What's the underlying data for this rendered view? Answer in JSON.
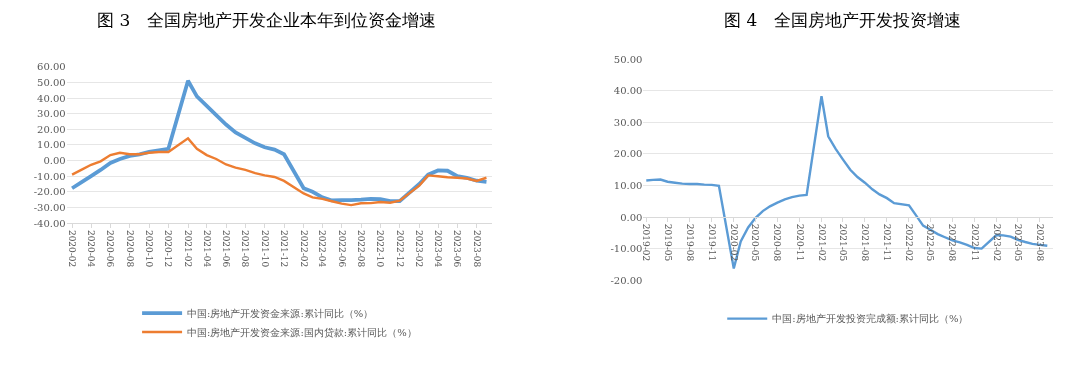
{
  "chart_data": [
    {
      "type": "line",
      "title": "图 3　全国房地产开发企业本年到位资金增速",
      "x": [
        "2020-02",
        "2020-03",
        "2020-04",
        "2020-05",
        "2020-06",
        "2020-07",
        "2020-08",
        "2020-09",
        "2020-10",
        "2020-11",
        "2020-12",
        "2021-02",
        "2021-03",
        "2021-04",
        "2021-05",
        "2021-06",
        "2021-07",
        "2021-08",
        "2021-09",
        "2021-10",
        "2021-11",
        "2021-12",
        "2022-02",
        "2022-03",
        "2022-04",
        "2022-05",
        "2022-06",
        "2022-07",
        "2022-08",
        "2022-09",
        "2022-10",
        "2022-11",
        "2022-12",
        "2023-02",
        "2023-03",
        "2023-04",
        "2023-05",
        "2023-06",
        "2023-07",
        "2023-08",
        "2023-09"
      ],
      "series": [
        {
          "name": "中国:房地产开发资金来源:累计同比（%）",
          "color": "#5b9bd5",
          "values": [
            -17.7,
            -14,
            -10,
            -6,
            -1.5,
            1,
            3,
            4,
            5.5,
            6.5,
            7.5,
            51,
            41,
            35,
            29,
            23,
            18,
            14.5,
            11,
            8.5,
            7,
            4,
            -17.7,
            -20,
            -23.5,
            -25.5,
            -25.3,
            -25.3,
            -25,
            -24.5,
            -24.6,
            -26,
            -25.9,
            -15,
            -9,
            -6.3,
            -6.5,
            -10,
            -11,
            -12.9,
            -13.6
          ]
        },
        {
          "name": "中国:房地产开发资金来源:国内贷款:累计同比（%）",
          "color": "#ed7d31",
          "values": [
            -9,
            -6,
            -2.7,
            -0.5,
            3.5,
            5,
            4,
            4,
            5,
            5.5,
            5.5,
            14.2,
            7.5,
            3.5,
            1,
            -2.5,
            -4.5,
            -6,
            -8,
            -9.5,
            -10.5,
            -13,
            -21,
            -23.5,
            -24.5,
            -26,
            -27.5,
            -28.5,
            -27.3,
            -27.2,
            -26.5,
            -27,
            -25.6,
            -16,
            -9.5,
            -10,
            -10.7,
            -11,
            -11.5,
            -13,
            -11
          ]
        }
      ],
      "xlim": [
        "2020-01-15",
        "2023-09-20"
      ],
      "xticks": [
        {
          "value": "2020-02",
          "label": "2020-02"
        },
        {
          "value": "2020-04",
          "label": "2020-04"
        },
        {
          "value": "2020-06",
          "label": "2020-06"
        },
        {
          "value": "2020-08",
          "label": "2020-08"
        },
        {
          "value": "2020-10",
          "label": "2020-10"
        },
        {
          "value": "2020-12",
          "label": "2020-12"
        },
        {
          "value": "2021-02",
          "label": "2021-02"
        },
        {
          "value": "2021-04",
          "label": "2021-04"
        },
        {
          "value": "2021-06",
          "label": "2021-06"
        },
        {
          "value": "2021-08",
          "label": "2021-08"
        },
        {
          "value": "2021-10",
          "label": "2021-10"
        },
        {
          "value": "2021-12",
          "label": "2021-12"
        },
        {
          "value": "2022-02",
          "label": "2022-02"
        },
        {
          "value": "2022-04",
          "label": "2022-04"
        },
        {
          "value": "2022-06",
          "label": "2022-06"
        },
        {
          "value": "2022-08",
          "label": "2022-08"
        },
        {
          "value": "2022-10",
          "label": "2022-10"
        },
        {
          "value": "2022-12",
          "label": "2022-12"
        },
        {
          "value": "2023-02",
          "label": "2023-02"
        },
        {
          "value": "2023-04",
          "label": "2023-04"
        },
        {
          "value": "2023-06",
          "label": "2023-06"
        },
        {
          "value": "2023-08",
          "label": "2023-08"
        }
      ],
      "ylim": [
        -40,
        60
      ],
      "yticks": [
        {
          "value": -40,
          "label": "-40.00"
        },
        {
          "value": -30,
          "label": "-30.00"
        },
        {
          "value": -20,
          "label": "-20.00"
        },
        {
          "value": -10,
          "label": "-10.00"
        },
        {
          "value": 0,
          "label": "0.00"
        },
        {
          "value": 10,
          "label": "10.00"
        },
        {
          "value": 20,
          "label": "20.00"
        },
        {
          "value": 30,
          "label": "30.00"
        },
        {
          "value": 40,
          "label": "40.00"
        },
        {
          "value": 50,
          "label": "50.00"
        },
        {
          "value": 60,
          "label": "60.00"
        }
      ],
      "grid": "y",
      "legend": "bottom"
    },
    {
      "type": "line",
      "title": "图 4　全国房地产开发投资增速",
      "x": [
        "2019-02",
        "2019-03",
        "2019-04",
        "2019-05",
        "2019-06",
        "2019-07",
        "2019-08",
        "2019-09",
        "2019-10",
        "2019-11",
        "2019-12",
        "2020-02",
        "2020-03",
        "2020-04",
        "2020-05",
        "2020-06",
        "2020-07",
        "2020-08",
        "2020-09",
        "2020-10",
        "2020-11",
        "2020-12",
        "2021-02",
        "2021-03",
        "2021-04",
        "2021-05",
        "2021-06",
        "2021-07",
        "2021-08",
        "2021-09",
        "2021-10",
        "2021-11",
        "2021-12",
        "2022-02",
        "2022-03",
        "2022-04",
        "2022-05",
        "2022-06",
        "2022-07",
        "2022-08",
        "2022-09",
        "2022-10",
        "2022-11",
        "2022-12",
        "2023-02",
        "2023-03",
        "2023-04",
        "2023-05",
        "2023-06",
        "2023-07",
        "2023-08",
        "2023-09"
      ],
      "series": [
        {
          "name": "中国:房地产开发投资完成额:累计同比（%）",
          "color": "#5b9bd5",
          "values": [
            11.6,
            11.8,
            11.9,
            11.2,
            10.9,
            10.6,
            10.5,
            10.5,
            10.3,
            10.2,
            9.9,
            -16.3,
            -7.7,
            -3.3,
            -0.3,
            1.9,
            3.4,
            4.6,
            5.6,
            6.3,
            6.8,
            7.0,
            38.3,
            25.6,
            21.6,
            18.3,
            15.0,
            12.7,
            10.9,
            8.8,
            7.2,
            6.0,
            4.4,
            3.7,
            0.7,
            -2.7,
            -4.0,
            -5.4,
            -6.4,
            -7.4,
            -8.0,
            -8.8,
            -9.8,
            -10.0,
            -5.7,
            -5.8,
            -6.2,
            -7.2,
            -7.9,
            -8.5,
            -8.8,
            -9.1
          ]
        }
      ],
      "xlim": [
        "2019-01-20",
        "2023-09-25"
      ],
      "xticks": [
        {
          "value": "2019-02",
          "label": "2019-02"
        },
        {
          "value": "2019-05",
          "label": "2019-05"
        },
        {
          "value": "2019-08",
          "label": "2019-08"
        },
        {
          "value": "2019-11",
          "label": "2019-11"
        },
        {
          "value": "2020-02",
          "label": "2020-02"
        },
        {
          "value": "2020-05",
          "label": "2020-05"
        },
        {
          "value": "2020-08",
          "label": "2020-08"
        },
        {
          "value": "2020-11",
          "label": "2020-11"
        },
        {
          "value": "2021-02",
          "label": "2021-02"
        },
        {
          "value": "2021-05",
          "label": "2021-05"
        },
        {
          "value": "2021-08",
          "label": "2021-08"
        },
        {
          "value": "2021-11",
          "label": "2021-11"
        },
        {
          "value": "2022-02",
          "label": "2022-02"
        },
        {
          "value": "2022-05",
          "label": "2022-05"
        },
        {
          "value": "2022-08",
          "label": "2022-08"
        },
        {
          "value": "2022-11",
          "label": "2022-11"
        },
        {
          "value": "2023-02",
          "label": "2023-02"
        },
        {
          "value": "2023-05",
          "label": "2023-05"
        },
        {
          "value": "2023-08",
          "label": "2023-08"
        }
      ],
      "ylim": [
        -20,
        50
      ],
      "yticks": [
        {
          "value": -20,
          "label": "-20.00"
        },
        {
          "value": -10,
          "label": "-10.00"
        },
        {
          "value": 0,
          "label": "0.00"
        },
        {
          "value": 10,
          "label": "10.00"
        },
        {
          "value": 20,
          "label": "20.00"
        },
        {
          "value": 30,
          "label": "30.00"
        },
        {
          "value": 40,
          "label": "40.00"
        },
        {
          "value": 50,
          "label": "50.00"
        }
      ],
      "grid": "y",
      "legend": "bottom"
    }
  ]
}
